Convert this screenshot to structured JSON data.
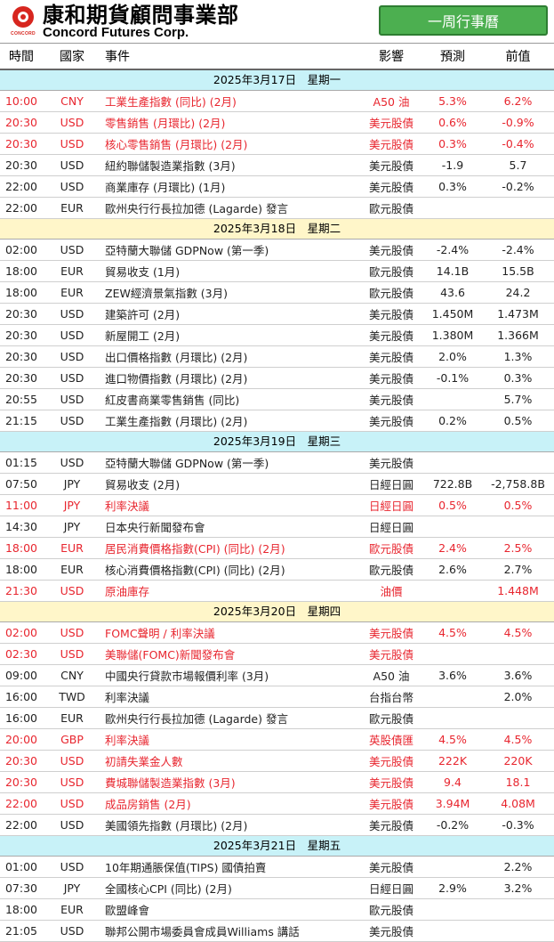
{
  "header": {
    "logo_sub": "CONCORD",
    "company_cn": "康和期貨顧問事業部",
    "company_en": "Concord Futures Corp.",
    "badge": "一周行事曆"
  },
  "columns": {
    "time": "時間",
    "country": "國家",
    "event": "事件",
    "impact": "影響",
    "forecast": "預測",
    "previous": "前值"
  },
  "days": [
    {
      "title": "2025年3月17日　星期一",
      "theme": "cyan",
      "rows": [
        {
          "time": "10:00",
          "country": "CNY",
          "event": "工業生產指數 (同比) (2月)",
          "impact": "A50 油",
          "forecast": "5.3%",
          "previous": "6.2%",
          "hi": true
        },
        {
          "time": "20:30",
          "country": "USD",
          "event": "零售銷售 (月環比) (2月)",
          "impact": "美元股債",
          "forecast": "0.6%",
          "previous": "-0.9%",
          "hi": true
        },
        {
          "time": "20:30",
          "country": "USD",
          "event": "核心零售銷售 (月環比) (2月)",
          "impact": "美元股債",
          "forecast": "0.3%",
          "previous": "-0.4%",
          "hi": true
        },
        {
          "time": "20:30",
          "country": "USD",
          "event": "紐約聯儲製造業指數 (3月)",
          "impact": "美元股債",
          "forecast": "-1.9",
          "previous": "5.7",
          "hi": false
        },
        {
          "time": "22:00",
          "country": "USD",
          "event": "商業庫存 (月環比) (1月)",
          "impact": "美元股債",
          "forecast": "0.3%",
          "previous": "-0.2%",
          "hi": false
        },
        {
          "time": "22:00",
          "country": "EUR",
          "event": "歐州央行行長拉加德 (Lagarde) 發言",
          "impact": "歐元股債",
          "forecast": "",
          "previous": "",
          "hi": false
        }
      ]
    },
    {
      "title": "2025年3月18日　星期二",
      "theme": "yellow",
      "rows": [
        {
          "time": "02:00",
          "country": "USD",
          "event": "亞特蘭大聯儲 GDPNow (第一季)",
          "impact": "美元股債",
          "forecast": "-2.4%",
          "previous": "-2.4%",
          "hi": false
        },
        {
          "time": "18:00",
          "country": "EUR",
          "event": "貿易收支 (1月)",
          "impact": "歐元股債",
          "forecast": "14.1B",
          "previous": "15.5B",
          "hi": false
        },
        {
          "time": "18:00",
          "country": "EUR",
          "event": "ZEW經濟景氣指數 (3月)",
          "impact": "歐元股債",
          "forecast": "43.6",
          "previous": "24.2",
          "hi": false
        },
        {
          "time": "20:30",
          "country": "USD",
          "event": "建築許可 (2月)",
          "impact": "美元股債",
          "forecast": "1.450M",
          "previous": "1.473M",
          "hi": false
        },
        {
          "time": "20:30",
          "country": "USD",
          "event": "新屋開工 (2月)",
          "impact": "美元股債",
          "forecast": "1.380M",
          "previous": "1.366M",
          "hi": false
        },
        {
          "time": "20:30",
          "country": "USD",
          "event": "出口價格指數 (月環比) (2月)",
          "impact": "美元股債",
          "forecast": "2.0%",
          "previous": "1.3%",
          "hi": false
        },
        {
          "time": "20:30",
          "country": "USD",
          "event": "進口物價指數 (月環比) (2月)",
          "impact": "美元股債",
          "forecast": "-0.1%",
          "previous": "0.3%",
          "hi": false
        },
        {
          "time": "20:55",
          "country": "USD",
          "event": "紅皮書商業零售銷售 (同比)",
          "impact": "美元股債",
          "forecast": "",
          "previous": "5.7%",
          "hi": false
        },
        {
          "time": "21:15",
          "country": "USD",
          "event": "工業生產指數 (月環比) (2月)",
          "impact": "美元股債",
          "forecast": "0.2%",
          "previous": "0.5%",
          "hi": false
        }
      ]
    },
    {
      "title": "2025年3月19日　星期三",
      "theme": "cyan",
      "rows": [
        {
          "time": "01:15",
          "country": "USD",
          "event": "亞特蘭大聯儲 GDPNow (第一季)",
          "impact": "美元股債",
          "forecast": "",
          "previous": "",
          "hi": false
        },
        {
          "time": "07:50",
          "country": "JPY",
          "event": "貿易收支 (2月)",
          "impact": "日經日圓",
          "forecast": "722.8B",
          "previous": "-2,758.8B",
          "hi": false
        },
        {
          "time": "11:00",
          "country": "JPY",
          "event": "利率決議",
          "impact": "日經日圓",
          "forecast": "0.5%",
          "previous": "0.5%",
          "hi": true
        },
        {
          "time": "14:30",
          "country": "JPY",
          "event": "日本央行新聞發布會",
          "impact": "日經日圓",
          "forecast": "",
          "previous": "",
          "hi": false
        },
        {
          "time": "18:00",
          "country": "EUR",
          "event": "居民消費價格指數(CPI) (同比) (2月)",
          "impact": "歐元股債",
          "forecast": "2.4%",
          "previous": "2.5%",
          "hi": true
        },
        {
          "time": "18:00",
          "country": "EUR",
          "event": "核心消費價格指數(CPI) (同比) (2月)",
          "impact": "歐元股債",
          "forecast": "2.6%",
          "previous": "2.7%",
          "hi": false
        },
        {
          "time": "21:30",
          "country": "USD",
          "event": "原油庫存",
          "impact": "油價",
          "forecast": "",
          "previous": "1.448M",
          "hi": true
        }
      ]
    },
    {
      "title": "2025年3月20日　星期四",
      "theme": "yellow",
      "rows": [
        {
          "time": "02:00",
          "country": "USD",
          "event": "FOMC聲明 / 利率決議",
          "impact": "美元股債",
          "forecast": "4.5%",
          "previous": "4.5%",
          "hi": true
        },
        {
          "time": "02:30",
          "country": "USD",
          "event": "美聯儲(FOMC)新聞發布會",
          "impact": "美元股債",
          "forecast": "",
          "previous": "",
          "hi": true
        },
        {
          "time": "09:00",
          "country": "CNY",
          "event": "中國央行貸款市場報價利率 (3月)",
          "impact": "A50 油",
          "forecast": "3.6%",
          "previous": "3.6%",
          "hi": false
        },
        {
          "time": "16:00",
          "country": "TWD",
          "event": "利率決議",
          "impact": "台指台幣",
          "forecast": "",
          "previous": "2.0%",
          "hi": false
        },
        {
          "time": "16:00",
          "country": "EUR",
          "event": "歐州央行行長拉加德 (Lagarde) 發言",
          "impact": "歐元股債",
          "forecast": "",
          "previous": "",
          "hi": false
        },
        {
          "time": "20:00",
          "country": "GBP",
          "event": "利率決議",
          "impact": "英股債匯",
          "forecast": "4.5%",
          "previous": "4.5%",
          "hi": true
        },
        {
          "time": "20:30",
          "country": "USD",
          "event": "初請失業金人數",
          "impact": "美元股債",
          "forecast": "222K",
          "previous": "220K",
          "hi": true
        },
        {
          "time": "20:30",
          "country": "USD",
          "event": "費城聯儲製造業指數 (3月)",
          "impact": "美元股債",
          "forecast": "9.4",
          "previous": "18.1",
          "hi": true
        },
        {
          "time": "22:00",
          "country": "USD",
          "event": "成品房銷售 (2月)",
          "impact": "美元股債",
          "forecast": "3.94M",
          "previous": "4.08M",
          "hi": true
        },
        {
          "time": "22:00",
          "country": "USD",
          "event": "美國領先指數 (月環比) (2月)",
          "impact": "美元股債",
          "forecast": "-0.2%",
          "previous": "-0.3%",
          "hi": false
        }
      ]
    },
    {
      "title": "2025年3月21日　星期五",
      "theme": "cyan",
      "rows": [
        {
          "time": "01:00",
          "country": "USD",
          "event": "10年期通脹保值(TIPS) 國債拍賣",
          "impact": "美元股債",
          "forecast": "",
          "previous": "2.2%",
          "hi": false
        },
        {
          "time": "07:30",
          "country": "JPY",
          "event": "全國核心CPI (同比) (2月)",
          "impact": "日經日圓",
          "forecast": "2.9%",
          "previous": "3.2%",
          "hi": false
        },
        {
          "time": "18:00",
          "country": "EUR",
          "event": "歐盟峰會",
          "impact": "歐元股債",
          "forecast": "",
          "previous": "",
          "hi": false
        },
        {
          "time": "21:05",
          "country": "USD",
          "event": "聯邦公開市場委員會成員Williams 講話",
          "impact": "美元股債",
          "forecast": "",
          "previous": "",
          "hi": false
        }
      ]
    }
  ]
}
